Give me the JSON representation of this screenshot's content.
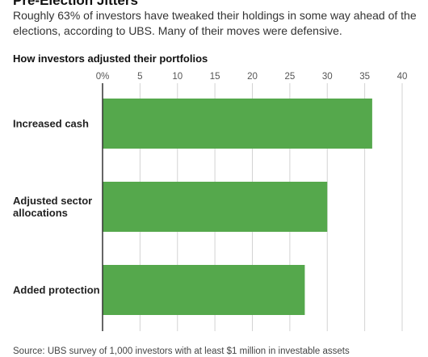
{
  "header": {
    "title": "Pre-Election Jitters",
    "subtitle": "Roughly 63% of investors have tweaked their holdings in some way ahead of the elections, according to UBS. Many of their moves were defensive."
  },
  "chart_data": {
    "type": "bar",
    "orientation": "horizontal",
    "title": "How investors adjusted their portfolios",
    "categories": [
      "Increased cash",
      "Adjusted sector allocations",
      "Added protection"
    ],
    "category_lines": [
      [
        "Increased cash"
      ],
      [
        "Adjusted sector",
        "allocations"
      ],
      [
        "Added protection"
      ]
    ],
    "values": [
      36,
      30,
      27
    ],
    "xlim": [
      0,
      40
    ],
    "ticks": [
      0,
      5,
      10,
      15,
      20,
      25,
      30,
      35,
      40
    ],
    "tick_labels": [
      "0%",
      "5",
      "10",
      "15",
      "20",
      "25",
      "30",
      "35",
      "40"
    ],
    "xlabel": "",
    "ylabel": "",
    "bar_color": "#55a84c",
    "grid": true,
    "tick_position": "top"
  },
  "footer": {
    "source": "Source: UBS survey of 1,000 investors with at least $1 million in investable assets"
  }
}
